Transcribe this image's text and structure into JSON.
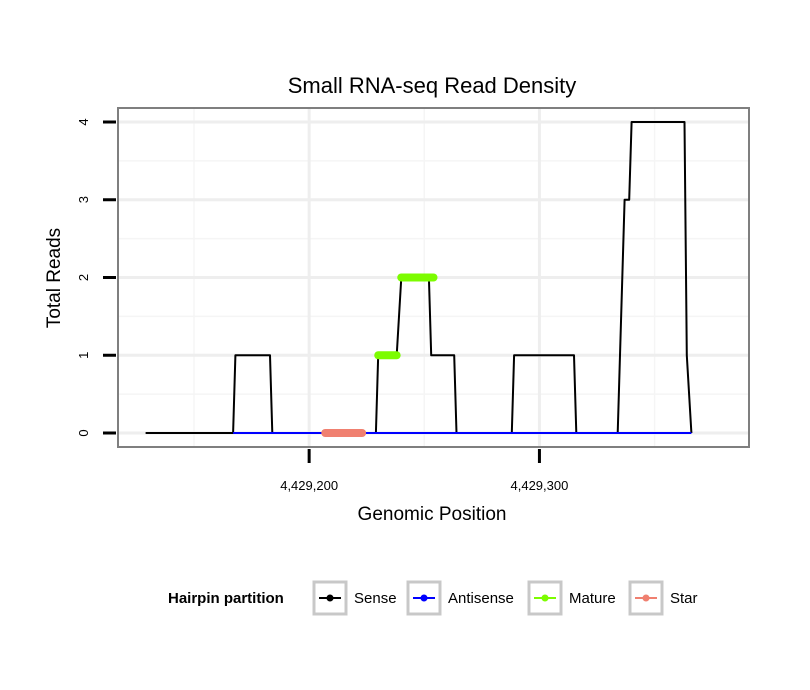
{
  "chart_data": {
    "type": "line",
    "title": "Small RNA-seq Read Density",
    "xlabel": "Genomic Position",
    "ylabel": "Total Reads",
    "xlim": [
      4429117,
      4429391
    ],
    "ylim": [
      -0.18,
      4.18
    ],
    "x_ticks": [
      {
        "value": 4429200,
        "label": "4,429,200"
      },
      {
        "value": 4429300,
        "label": "4,429,300"
      }
    ],
    "y_ticks": [
      {
        "value": 0,
        "label": "0"
      },
      {
        "value": 1,
        "label": "1"
      },
      {
        "value": 2,
        "label": "2"
      },
      {
        "value": 3,
        "label": "3"
      },
      {
        "value": 4,
        "label": "4"
      }
    ],
    "grid": true,
    "legend_title": "Hairpin partition",
    "series": [
      {
        "name": "Sense",
        "color": "#000000",
        "x": [
          4429129,
          4429167,
          4429168,
          4429183,
          4429184,
          4429229,
          4429230,
          4429238,
          4429240,
          4429252,
          4429253,
          4429263,
          4429264,
          4429288,
          4429289,
          4429315,
          4429316,
          4429334,
          4429337,
          4429339,
          4429340,
          4429363,
          4429364,
          4429366
        ],
        "y": [
          0,
          0,
          1,
          1,
          0,
          0,
          1,
          1,
          2,
          2,
          1,
          1,
          0,
          0,
          1,
          1,
          0,
          0,
          3,
          3,
          4,
          4,
          1,
          0
        ]
      },
      {
        "name": "Antisense",
        "color": "#0000ff",
        "x": [
          4429167,
          4429183,
          4429229,
          4429264,
          4429288,
          4429315,
          4429334,
          4429366
        ],
        "y": [
          0,
          0,
          0,
          0,
          0,
          0,
          0,
          0
        ]
      },
      {
        "name": "Mature",
        "color": "#7cfc00",
        "segments": [
          {
            "x": [
              4429230,
              4429238
            ],
            "y": [
              1,
              1
            ]
          },
          {
            "x": [
              4429240,
              4429254
            ],
            "y": [
              2,
              2
            ]
          }
        ]
      },
      {
        "name": "Star",
        "color": "#f08070",
        "segments": [
          {
            "x": [
              4429207,
              4429223
            ],
            "y": [
              0,
              0
            ]
          }
        ]
      }
    ]
  }
}
